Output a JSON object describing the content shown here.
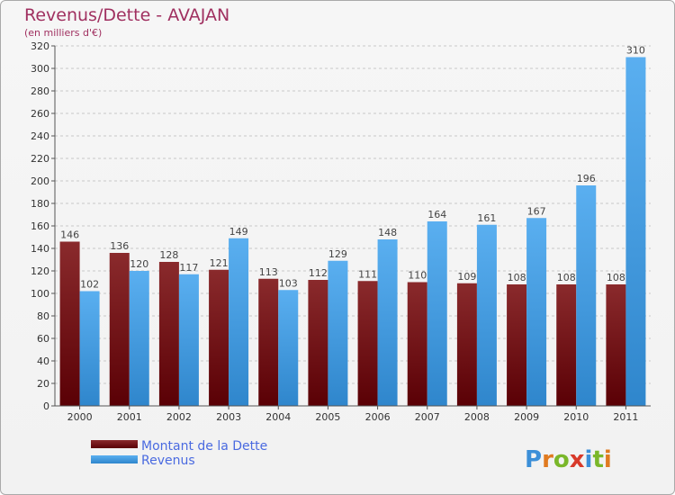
{
  "chart_data": {
    "type": "bar",
    "title": "Revenus/Dette - AVAJAN",
    "subtitle": "(en milliers d'€)",
    "categories": [
      "2000",
      "2001",
      "2002",
      "2003",
      "2004",
      "2005",
      "2006",
      "2007",
      "2008",
      "2009",
      "2010",
      "2011"
    ],
    "series": [
      {
        "name": "Montant de la Dette",
        "values": [
          146,
          136,
          128,
          121,
          113,
          112,
          111,
          110,
          109,
          108,
          108,
          108
        ],
        "color": "#6e0f12"
      },
      {
        "name": "Revenus",
        "values": [
          102,
          120,
          117,
          149,
          103,
          129,
          148,
          164,
          161,
          167,
          196,
          310
        ],
        "color": "#3c9ce0"
      }
    ],
    "yticks": [
      0,
      20,
      40,
      60,
      80,
      100,
      120,
      140,
      160,
      180,
      200,
      220,
      240,
      260,
      280,
      300,
      320
    ],
    "ylim": [
      0,
      320
    ],
    "grid": true,
    "legend_position": "bottom-left"
  },
  "branding": {
    "logo_text": "Proxiti",
    "logo_colors": [
      "#3c8fd8",
      "#e07a20",
      "#7ab72a",
      "#d83a2a",
      "#3c8fd8",
      "#7ab72a",
      "#e07a20"
    ]
  }
}
